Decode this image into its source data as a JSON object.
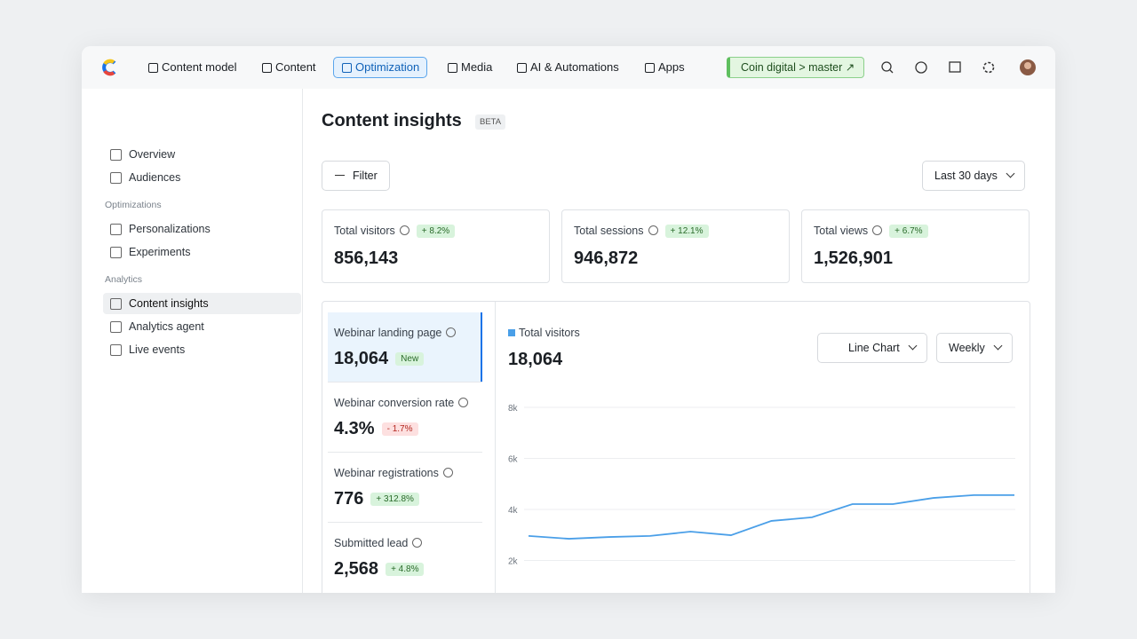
{
  "nav": {
    "items": [
      "Content model",
      "Content",
      "Optimization",
      "Media",
      "AI & Automations",
      "Apps"
    ],
    "active": 2,
    "space": "Coin digital",
    "environment": "master"
  },
  "sidebar": {
    "items": [
      "Overview",
      "Audiences"
    ],
    "sections": [
      {
        "title": "Optimizations",
        "items": [
          "Personalizations",
          "Experiments"
        ]
      },
      {
        "title": "Analytics",
        "items": [
          "Content insights",
          "Analytics agent",
          "Live events"
        ]
      }
    ]
  },
  "header": {
    "title": "Content insights",
    "badge": "BETA",
    "filter": "Filter",
    "range": "Last 30 days"
  },
  "kpis": [
    {
      "label": "Total visitors",
      "change": "+ 8.2%",
      "value": "856,143"
    },
    {
      "label": "Total sessions",
      "change": "+ 12.1%",
      "value": "946,872"
    },
    {
      "label": "Total views",
      "change": "+ 6.7%",
      "value": "1,526,901"
    }
  ],
  "metrics": [
    {
      "label": "Webinar landing page",
      "value": "18,064",
      "tag": "New",
      "tag_color": "#d8f3dc"
    },
    {
      "label": "Webinar conversion rate",
      "value": "4.3%",
      "tag": "- 1.7%",
      "tag_color": "#fde0e0"
    },
    {
      "label": "Webinar registrations",
      "value": "776",
      "tag": "+ 312.8%",
      "tag_color": "#d8f3dc"
    },
    {
      "label": "Submitted lead",
      "value": "2,568",
      "tag": "+ 4.8%",
      "tag_color": "#d8f3dc"
    }
  ],
  "chart_data": {
    "type": "line",
    "headline": "18,064",
    "chart_type": "Line Chart",
    "interval": "Weekly",
    "series": [
      {
        "name": "Total visitors",
        "color": "#4a9fe8",
        "values": [
          2960,
          2850,
          2920,
          2960,
          3130,
          2990,
          3550,
          3690,
          4210,
          4210,
          4450,
          4560,
          4560
        ]
      }
    ],
    "ylim": [
      0,
      8000
    ],
    "yticks": [
      {
        "value": 2000,
        "label": "2k"
      },
      {
        "value": 4000,
        "label": "4k"
      },
      {
        "value": 6000,
        "label": "6k"
      },
      {
        "value": 8000,
        "label": "8k"
      }
    ],
    "grid": true
  }
}
